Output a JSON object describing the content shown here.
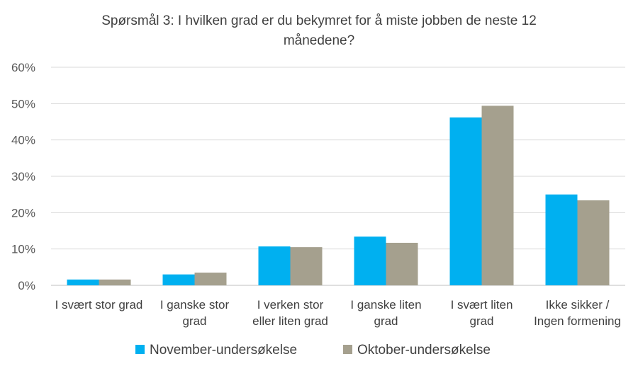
{
  "chart_data": {
    "type": "bar",
    "title_lines": [
      "Spørsmål 3: I hvilken grad er du bekymret for å miste jobben de neste 12",
      "månedene?"
    ],
    "categories": [
      [
        "I svært stor grad"
      ],
      [
        "I ganske stor",
        "grad"
      ],
      [
        "I verken stor",
        "eller liten grad"
      ],
      [
        "I ganske liten",
        "grad"
      ],
      [
        "I svært liten",
        "grad"
      ],
      [
        "Ikke sikker /",
        "Ingen formening"
      ]
    ],
    "series": [
      {
        "name": "November-undersøkelse",
        "color": "#00B0F0",
        "values": [
          1.6,
          3.0,
          10.7,
          13.4,
          46.2,
          25.0
        ]
      },
      {
        "name": "Oktober-undersøkelse",
        "color": "#A5A08E",
        "values": [
          1.6,
          3.5,
          10.5,
          11.7,
          49.4,
          23.4
        ]
      }
    ],
    "ylim": [
      0,
      60
    ],
    "yticks": [
      "0%",
      "10%",
      "20%",
      "30%",
      "40%",
      "50%",
      "60%"
    ],
    "grid": true,
    "legend": "bottom"
  }
}
